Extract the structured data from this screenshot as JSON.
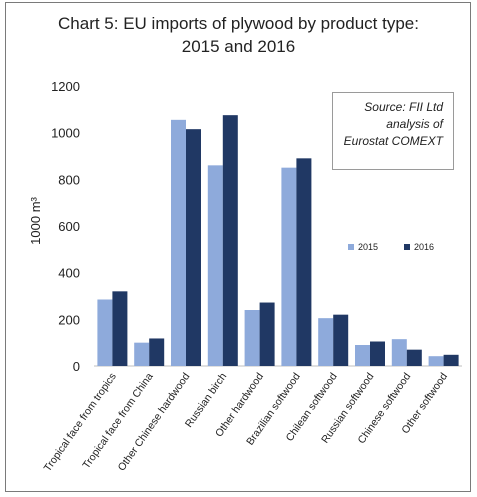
{
  "chart_data": {
    "type": "bar",
    "title_lines": [
      "Chart 5: EU imports of plywood by product type:",
      "2015 and 2016"
    ],
    "ylabel": "1000 m³",
    "xlabel": "",
    "ylim": [
      0,
      1200
    ],
    "yticks": [
      0,
      200,
      400,
      600,
      800,
      1000,
      1200
    ],
    "grid": false,
    "legend_position": "right-middle",
    "categories": [
      "Tropical face from tropics",
      "Tropical face from China",
      "Other Chinese hardwood",
      "Russian birch",
      "Other hardwood",
      "Brazilian softwood",
      "Chilean softwood",
      "Russian softwood",
      "Chinese softwood",
      "Other softwood"
    ],
    "series": [
      {
        "name": "2015",
        "color": "#8eaadb",
        "values": [
          285,
          100,
          1055,
          860,
          240,
          850,
          205,
          90,
          115,
          42
        ]
      },
      {
        "name": "2016",
        "color": "#203864",
        "values": [
          320,
          118,
          1015,
          1075,
          272,
          890,
          220,
          105,
          70,
          48
        ]
      }
    ],
    "annotation_lines": [
      "Source: FII Ltd",
      "analysis of",
      "Eurostat COMEXT"
    ]
  }
}
